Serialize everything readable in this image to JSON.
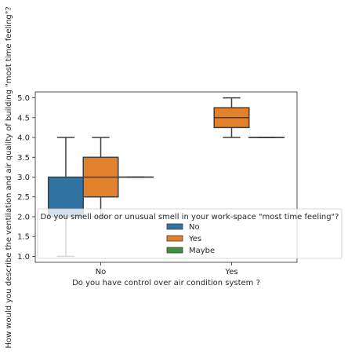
{
  "chart_data": {
    "type": "boxplot",
    "xlabel": "Do you have control over air condition system ?",
    "ylabel": "How would you describe the ventilation and air quality of building  \"most time feeling\"?",
    "categories": [
      "No",
      "Yes"
    ],
    "ylim": [
      0.85,
      5.15
    ],
    "yticks": [
      "1.0",
      "1.5",
      "2.0",
      "2.5",
      "3.0",
      "3.5",
      "4.0",
      "4.5",
      "5.0"
    ],
    "grid": false,
    "legend": {
      "title": "Do you smell odor or unusual smell in your work-space \"most time feeling\"?",
      "placement": "lower-center",
      "entries": [
        "No",
        "Yes",
        "Maybe"
      ]
    },
    "series": [
      {
        "name": "No",
        "color": "#3274a1",
        "boxes": [
          {
            "category": "No",
            "whislo": 1.0,
            "q1": 2.0,
            "median": 2.0,
            "q3": 3.0,
            "whishi": 4.0
          },
          null
        ]
      },
      {
        "name": "Yes",
        "color": "#e1812c",
        "boxes": [
          {
            "category": "No",
            "whislo": 2.0,
            "q1": 2.5,
            "median": 3.0,
            "q3": 3.5,
            "whishi": 4.0
          },
          {
            "category": "Yes",
            "whislo": 4.0,
            "q1": 4.25,
            "median": 4.5,
            "q3": 4.75,
            "whishi": 5.0
          }
        ]
      },
      {
        "name": "Maybe",
        "color": "#3a923a",
        "boxes": [
          {
            "category": "No",
            "whislo": 3.0,
            "q1": 3.0,
            "median": 3.0,
            "q3": 3.0,
            "whishi": 3.0
          },
          {
            "category": "Yes",
            "whislo": 4.0,
            "q1": 4.0,
            "median": 4.0,
            "q3": 4.0,
            "whishi": 4.0
          }
        ]
      }
    ]
  }
}
